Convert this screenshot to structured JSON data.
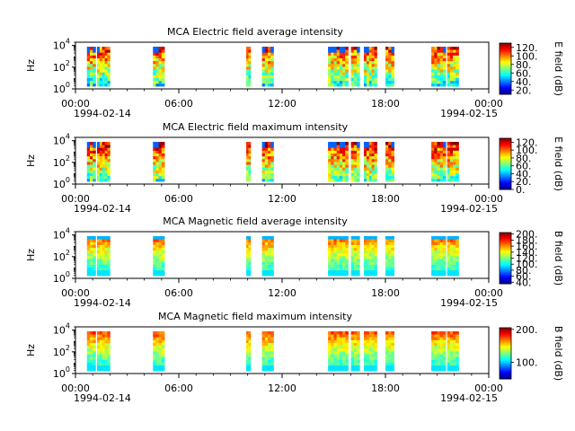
{
  "chart_data": [
    {
      "type": "heatmap",
      "title": "MCA  Electric field average intensity",
      "ylabel": "Hz",
      "yscale": "log",
      "y_ticks": [
        "10^4",
        "10^2",
        "10^0"
      ],
      "ylim": [
        1,
        20000
      ],
      "xlim": [
        "1994-02-14 00:00",
        "1994-02-15 00:00"
      ],
      "x_ticks": [
        "00:00",
        "06:00",
        "12:00",
        "18:00",
        "00:00"
      ],
      "x_dates": [
        "1994-02-14",
        "1994-02-15"
      ],
      "colorbar": {
        "label": "E field (dB)",
        "range": [
          10,
          130
        ],
        "ticks": [
          "120.",
          "100.",
          "80.",
          "60.",
          "40.",
          "20."
        ]
      },
      "data_intervals": [
        [
          "00:40",
          "01:10"
        ],
        [
          "01:15",
          "02:00"
        ],
        [
          "04:30",
          "05:10"
        ],
        [
          "09:55",
          "10:10"
        ],
        [
          "10:50",
          "11:30"
        ],
        [
          "14:40",
          "15:50"
        ],
        [
          "16:00",
          "16:30"
        ],
        [
          "16:45",
          "17:30"
        ],
        [
          "18:00",
          "18:30"
        ],
        [
          "20:40",
          "21:30"
        ],
        [
          "21:35",
          "22:15"
        ]
      ]
    },
    {
      "type": "heatmap",
      "title": "MCA  Electric field maximum intensity",
      "ylabel": "Hz",
      "yscale": "log",
      "y_ticks": [
        "10^4",
        "10^2",
        "10^0"
      ],
      "ylim": [
        1,
        20000
      ],
      "xlim": [
        "1994-02-14 00:00",
        "1994-02-15 00:00"
      ],
      "x_ticks": [
        "00:00",
        "06:00",
        "12:00",
        "18:00",
        "00:00"
      ],
      "x_dates": [
        "1994-02-14",
        "1994-02-15"
      ],
      "colorbar": {
        "label": "E field (dB)",
        "range": [
          0,
          130
        ],
        "ticks": [
          "120.",
          "100.",
          "80.",
          "60.",
          "40.",
          "20.",
          "0."
        ]
      },
      "data_intervals": [
        [
          "00:40",
          "01:10"
        ],
        [
          "01:15",
          "02:00"
        ],
        [
          "04:30",
          "05:10"
        ],
        [
          "09:55",
          "10:10"
        ],
        [
          "10:50",
          "11:30"
        ],
        [
          "14:40",
          "15:50"
        ],
        [
          "16:00",
          "16:30"
        ],
        [
          "16:45",
          "17:30"
        ],
        [
          "18:00",
          "18:30"
        ],
        [
          "20:40",
          "21:30"
        ],
        [
          "21:35",
          "22:15"
        ]
      ]
    },
    {
      "type": "heatmap",
      "title": "MCA  Magnetic field average intensity",
      "ylabel": "Hz",
      "yscale": "log",
      "y_ticks": [
        "10^4",
        "10^2",
        "10^0"
      ],
      "ylim": [
        1,
        20000
      ],
      "xlim": [
        "1994-02-14 00:00",
        "1994-02-15 00:00"
      ],
      "x_ticks": [
        "00:00",
        "06:00",
        "12:00",
        "18:00",
        "00:00"
      ],
      "x_dates": [
        "1994-02-14",
        "1994-02-15"
      ],
      "colorbar": {
        "label": "B field (dB)",
        "range": [
          35,
          205
        ],
        "ticks": [
          "200.",
          "180.",
          "160.",
          "140.",
          "120.",
          "100.",
          "80.",
          "60.",
          "40."
        ]
      },
      "data_intervals": [
        [
          "00:40",
          "01:10"
        ],
        [
          "01:15",
          "02:00"
        ],
        [
          "04:30",
          "05:10"
        ],
        [
          "09:55",
          "10:10"
        ],
        [
          "10:50",
          "11:30"
        ],
        [
          "14:40",
          "15:50"
        ],
        [
          "16:00",
          "16:30"
        ],
        [
          "16:45",
          "17:30"
        ],
        [
          "18:00",
          "18:30"
        ],
        [
          "20:40",
          "21:30"
        ],
        [
          "21:35",
          "22:15"
        ]
      ]
    },
    {
      "type": "heatmap",
      "title": "MCA  Magnetic field maximum intensity",
      "ylabel": "Hz",
      "yscale": "log",
      "y_ticks": [
        "10^4",
        "10^2",
        "10^0"
      ],
      "ylim": [
        1,
        20000
      ],
      "xlim": [
        "1994-02-14 00:00",
        "1994-02-15 00:00"
      ],
      "x_ticks": [
        "00:00",
        "06:00",
        "12:00",
        "18:00",
        "00:00"
      ],
      "x_dates": [
        "1994-02-14",
        "1994-02-15"
      ],
      "colorbar": {
        "label": "B field (dB)",
        "range": [
          50,
          205
        ],
        "ticks": [
          "200.",
          "100."
        ]
      },
      "data_intervals": [
        [
          "00:40",
          "01:10"
        ],
        [
          "01:15",
          "02:00"
        ],
        [
          "04:30",
          "05:10"
        ],
        [
          "09:55",
          "10:10"
        ],
        [
          "10:50",
          "11:30"
        ],
        [
          "14:40",
          "15:50"
        ],
        [
          "16:00",
          "16:30"
        ],
        [
          "16:45",
          "17:30"
        ],
        [
          "18:00",
          "18:30"
        ],
        [
          "20:40",
          "21:30"
        ],
        [
          "21:35",
          "22:15"
        ]
      ]
    }
  ]
}
